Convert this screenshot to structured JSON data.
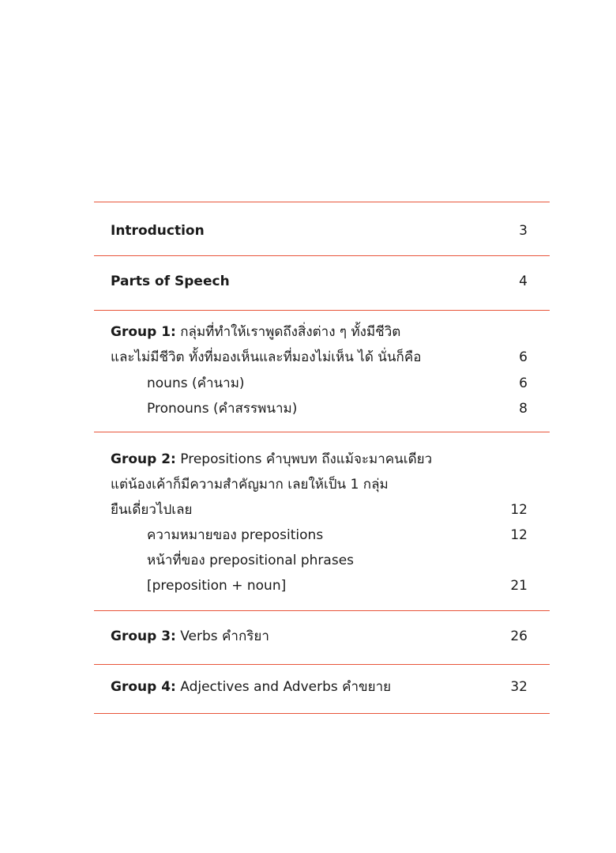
{
  "accent_color": "#e8553a",
  "entries": [
    {
      "bold": "Introduction",
      "page": "3"
    },
    {
      "bold": "Parts of Speech",
      "page": "4"
    },
    {
      "bold": "Group 1:",
      "lines": [
        "กลุ่มที่ทำให้เราพูดถึงสิ่งต่าง ๆ ทั้งมีชีวิต",
        "และไม่มีชีวิต ทั้งที่มองเห็นและที่มองไม่เห็น ได้ นั่นก็คือ"
      ],
      "page": "6",
      "sub": [
        {
          "text": "nouns (คำนาม)",
          "page": "6"
        },
        {
          "text": "Pronouns (คำสรรพนาม)",
          "page": "8"
        }
      ]
    },
    {
      "bold": "Group 2:",
      "lines": [
        "Prepositions คำบุพบท ถึงแม้จะมาคนเดียว",
        "แต่น้องเค้าก็มีความสำคัญมาก เลยให้เป็น 1 กลุ่ม",
        "ยืนเดี่ยวไปเลย"
      ],
      "page": "12",
      "sub": [
        {
          "text": "ความหมายของ prepositions",
          "page": "12"
        },
        {
          "text": "หน้าที่ของ prepositional phrases",
          "text2": "[preposition + noun]",
          "page": "21"
        }
      ]
    },
    {
      "bold": "Group 3:",
      "lines": [
        "Verbs คำกริยา"
      ],
      "page": "26"
    },
    {
      "bold": "Group 4:",
      "lines": [
        "Adjectives and Adverbs คำขยาย"
      ],
      "page": "32"
    }
  ]
}
